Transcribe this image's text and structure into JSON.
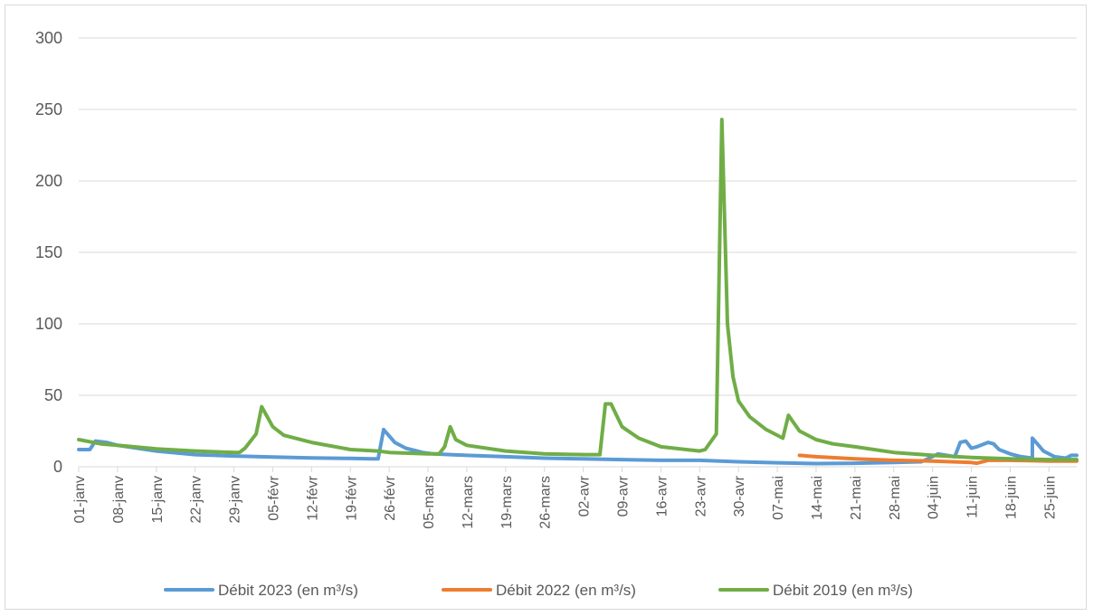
{
  "chart_data": {
    "type": "line",
    "title": "",
    "xlabel": "",
    "ylabel": "",
    "ylim": [
      0,
      300
    ],
    "y_ticks": [
      0,
      50,
      100,
      150,
      200,
      250,
      300
    ],
    "x_start": "01-janv",
    "x_end": "30-juin",
    "x_tick_labels": [
      "01-janv",
      "08-janv",
      "15-janv",
      "22-janv",
      "29-janv",
      "05-févr",
      "12-févr",
      "19-févr",
      "26-févr",
      "05-mars",
      "12-mars",
      "19-mars",
      "26-mars",
      "02-avr",
      "09-avr",
      "16-avr",
      "23-avr",
      "30-avr",
      "07-mai",
      "14-mai",
      "21-mai",
      "28-mai",
      "04-juin",
      "11-juin",
      "18-juin",
      "25-juin"
    ],
    "grid": true,
    "legend_position": "bottom",
    "series": [
      {
        "name": "Débit 2023 (en m³/s)",
        "color": "#5b9bd5",
        "points": [
          [
            "01-janv",
            12
          ],
          [
            "03-janv",
            12
          ],
          [
            "04-janv",
            18
          ],
          [
            "06-janv",
            17
          ],
          [
            "08-janv",
            15
          ],
          [
            "15-janv",
            11
          ],
          [
            "22-janv",
            8.5
          ],
          [
            "29-janv",
            7.5
          ],
          [
            "05-févr",
            6.8
          ],
          [
            "12-févr",
            6.2
          ],
          [
            "19-févr",
            5.8
          ],
          [
            "23-févr",
            5.5
          ],
          [
            "24-févr",
            5.5
          ],
          [
            "25-févr",
            26
          ],
          [
            "27-févr",
            17
          ],
          [
            "29-févr",
            13
          ],
          [
            "04-mars",
            10
          ],
          [
            "06-mars",
            9
          ],
          [
            "12-mars",
            8
          ],
          [
            "19-mars",
            7
          ],
          [
            "26-mars",
            6
          ],
          [
            "02-avr",
            5.5
          ],
          [
            "09-avr",
            5
          ],
          [
            "16-avr",
            4.5
          ],
          [
            "23-avr",
            4.5
          ],
          [
            "30-avr",
            3.5
          ],
          [
            "07-mai",
            2.8
          ],
          [
            "14-mai",
            2.2
          ],
          [
            "21-mai",
            2.5
          ],
          [
            "28-mai",
            3
          ],
          [
            "02-juin",
            3.5
          ],
          [
            "05-juin",
            9
          ],
          [
            "08-juin",
            7
          ],
          [
            "09-juin",
            17
          ],
          [
            "10-juin",
            18
          ],
          [
            "11-juin",
            13
          ],
          [
            "12-juin",
            14
          ],
          [
            "14-juin",
            17
          ],
          [
            "15-juin",
            16
          ],
          [
            "16-juin",
            12
          ],
          [
            "18-juin",
            9
          ],
          [
            "20-juin",
            7
          ],
          [
            "22-juin",
            6
          ],
          [
            "22-juin",
            20
          ],
          [
            "24-juin",
            11
          ],
          [
            "26-juin",
            7
          ],
          [
            "28-juin",
            6
          ],
          [
            "29-juin",
            8
          ],
          [
            "30-juin",
            8
          ]
        ]
      },
      {
        "name": "Débit 2022 (en m³/s)",
        "color": "#ed7d31",
        "points": [
          [
            "11-mai",
            8
          ],
          [
            "14-mai",
            7
          ],
          [
            "21-mai",
            5.5
          ],
          [
            "28-mai",
            4.5
          ],
          [
            "04-juin",
            4
          ],
          [
            "11-juin",
            3
          ],
          [
            "12-juin",
            2.5
          ],
          [
            "14-juin",
            4.5
          ],
          [
            "18-juin",
            4.5
          ],
          [
            "25-juin",
            4
          ],
          [
            "30-juin",
            4
          ]
        ]
      },
      {
        "name": "Débit 2019 (en m³/s)",
        "color": "#70ad47",
        "points": [
          [
            "01-janv",
            19
          ],
          [
            "05-janv",
            16
          ],
          [
            "08-janv",
            15
          ],
          [
            "15-janv",
            12.5
          ],
          [
            "22-janv",
            11
          ],
          [
            "29-janv",
            10
          ],
          [
            "30-janv",
            10
          ],
          [
            "31-janv",
            13
          ],
          [
            "02-févr",
            23
          ],
          [
            "03-févr",
            42
          ],
          [
            "05-févr",
            28
          ],
          [
            "07-févr",
            22
          ],
          [
            "12-févr",
            17
          ],
          [
            "19-févr",
            12
          ],
          [
            "24-févr",
            11
          ],
          [
            "26-févr",
            10
          ],
          [
            "05-mars",
            9
          ],
          [
            "07-mars",
            9
          ],
          [
            "08-mars",
            14
          ],
          [
            "09-mars",
            28
          ],
          [
            "10-mars",
            19
          ],
          [
            "12-mars",
            15
          ],
          [
            "19-mars",
            11
          ],
          [
            "26-mars",
            9
          ],
          [
            "02-avr",
            8.5
          ],
          [
            "05-avr",
            8.5
          ],
          [
            "06-avr",
            44
          ],
          [
            "07-avr",
            44
          ],
          [
            "09-avr",
            28
          ],
          [
            "12-avr",
            20
          ],
          [
            "16-avr",
            14
          ],
          [
            "23-avr",
            11
          ],
          [
            "24-avr",
            12
          ],
          [
            "26-avr",
            23
          ],
          [
            "27-avr",
            243
          ],
          [
            "28-avr",
            100
          ],
          [
            "29-avr",
            63
          ],
          [
            "30-avr",
            46
          ],
          [
            "02-mai",
            35
          ],
          [
            "05-mai",
            26
          ],
          [
            "08-mai",
            20
          ],
          [
            "09-mai",
            36
          ],
          [
            "11-mai",
            25
          ],
          [
            "14-mai",
            19
          ],
          [
            "17-mai",
            16
          ],
          [
            "21-mai",
            14
          ],
          [
            "28-mai",
            10
          ],
          [
            "04-juin",
            8
          ],
          [
            "11-juin",
            6.5
          ],
          [
            "18-juin",
            5.5
          ],
          [
            "25-juin",
            5
          ],
          [
            "30-juin",
            5
          ]
        ]
      }
    ]
  }
}
